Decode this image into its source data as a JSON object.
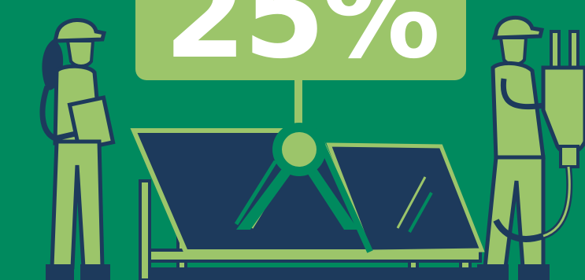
{
  "callout": {
    "value": "25%"
  },
  "colors": {
    "background": "#008a5e",
    "accent_green": "#9cc56a",
    "navy": "#1d3a5c",
    "white": "#ffffff"
  },
  "icons": [
    "female-worker-icon",
    "male-worker-icon",
    "solar-panel-icon",
    "power-plug-icon"
  ]
}
